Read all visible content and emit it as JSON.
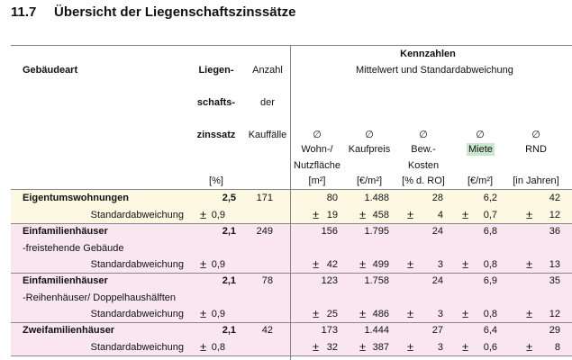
{
  "heading": {
    "number": "11.7",
    "title": "Übersicht der Liegenschaftszinssätze"
  },
  "table": {
    "header": {
      "building_type": "Gebäudeart",
      "rate": [
        "Liegen-",
        "schafts-",
        "zinssatz"
      ],
      "rate_unit": "[%]",
      "count": [
        "Anzahl",
        "der",
        "Kauffälle"
      ],
      "group": "Kennzahlen",
      "group_sub": "Mittelwert und Standardabweichung",
      "avg_symbol": "∅",
      "metrics": [
        {
          "label": [
            "Wohn-/",
            "Nutzfläche"
          ],
          "unit": "[m²]"
        },
        {
          "label": [
            "Kaufpreis"
          ],
          "unit": "[€/m²]"
        },
        {
          "label": [
            "Bew.-",
            "Kosten"
          ],
          "unit": "[% d. RO]"
        },
        {
          "label": [
            "Miete"
          ],
          "unit": "[€/m²]",
          "highlight": "#c8e8cb"
        },
        {
          "label": [
            "RND"
          ],
          "unit": "[in Jahren]"
        }
      ]
    },
    "plus_minus": "±",
    "std_label": "Standardabweichung",
    "rows": [
      {
        "name": "Eigentumswohnungen",
        "color": "#fdf8e2",
        "rate": "2,5",
        "count": "171",
        "metrics": [
          "80",
          "1.488",
          "28",
          "6,2",
          "42"
        ],
        "std": [
          "0,9",
          "19",
          "458",
          "4",
          "0,7",
          "12"
        ]
      },
      {
        "name": "Einfamilienhäuser",
        "subname": "-freistehende Gebäude",
        "color": "#fae6ef",
        "rate": "2,1",
        "count": "249",
        "metrics": [
          "156",
          "1.795",
          "24",
          "6,8",
          "36"
        ],
        "std": [
          "0,9",
          "42",
          "499",
          "3",
          "0,8",
          "13"
        ]
      },
      {
        "name": "Einfamilienhäuser",
        "subname": "-Reihenhäuser/ Doppelhaushälften",
        "color": "#fae6ef",
        "rate": "2,1",
        "count": "78",
        "metrics": [
          "123",
          "1.758",
          "24",
          "6,9",
          "35"
        ],
        "std": [
          "0,9",
          "25",
          "486",
          "3",
          "0,8",
          "12"
        ]
      },
      {
        "name": "Zweifamilienhäuser",
        "color": "#fae6ef",
        "rate": "2,1",
        "count": "42",
        "metrics": [
          "173",
          "1.444",
          "27",
          "6,4",
          "29"
        ],
        "std": [
          "0,8",
          "32",
          "387",
          "3",
          "0,6",
          "8"
        ]
      }
    ]
  }
}
